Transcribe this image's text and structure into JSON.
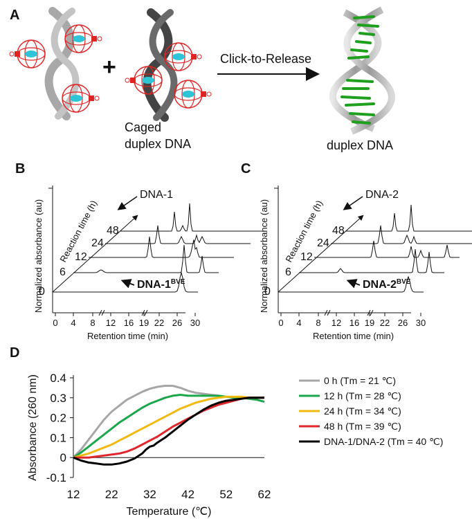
{
  "panel_a": {
    "letter": "A",
    "plus": "+",
    "arrow_label": "Click-to-Release",
    "caged_line1": "Caged",
    "caged_line2": "duplex DNA",
    "product_label": "duplex DNA"
  },
  "panel_b": {
    "letter": "B",
    "ylabel_line1": "Normalized  absorbance (au)",
    "depth_label": "Reaction time (h)",
    "xlabel": "Retention time (min)",
    "x_ticks": [
      "0",
      "4",
      "8",
      "12",
      "16",
      "19",
      "22",
      "26",
      "30"
    ],
    "trace_labels": [
      "0",
      "6",
      "12",
      "24",
      "48"
    ],
    "peak_top": "DNA-1",
    "peak_bottom": "DNA-1",
    "peak_bottom_sup": "BVE"
  },
  "panel_c": {
    "letter": "C",
    "ylabel_line1": "Normalized  absorbance (au)",
    "depth_label": "Reaction time (h)",
    "xlabel": "Retention time (min)",
    "x_ticks": [
      "0",
      "4",
      "8",
      "12",
      "16",
      "19",
      "22",
      "26",
      "30"
    ],
    "trace_labels": [
      "0",
      "6",
      "12",
      "24",
      "48"
    ],
    "peak_top": "DNA-2",
    "peak_bottom": "DNA-2",
    "peak_bottom_sup": "BVE"
  },
  "panel_d": {
    "letter": "D"
  },
  "chart_data": {
    "type": "line",
    "xlabel": "Temperature (℃)",
    "ylabel": "Absorbance (260 nm)",
    "xlim": [
      12,
      62
    ],
    "ylim": [
      -0.1,
      0.4
    ],
    "x_ticks": [
      "12",
      "22",
      "32",
      "42",
      "52",
      "62"
    ],
    "y_ticks": [
      "-0.1",
      "0",
      "0.1",
      "0.2",
      "0.3",
      "0.4"
    ],
    "legend_position": "right",
    "series": [
      {
        "name": "0 h (Tm = 21 ℃)",
        "color": "#a6a6a6",
        "x": [
          12,
          14,
          16,
          18,
          20,
          22,
          24,
          26,
          28,
          30,
          32,
          34,
          36,
          38,
          40,
          42,
          44,
          46,
          48,
          50,
          52,
          54,
          56,
          58,
          60,
          62
        ],
        "y": [
          0,
          0.04,
          0.09,
          0.14,
          0.19,
          0.23,
          0.26,
          0.29,
          0.31,
          0.33,
          0.345,
          0.355,
          0.36,
          0.36,
          0.35,
          0.335,
          0.325,
          0.32,
          0.315,
          0.31,
          0.305,
          0.3,
          0.3,
          0.3,
          0.3,
          0.3
        ]
      },
      {
        "name": "12 h (Tm = 28 ℃)",
        "color": "#1aa64a",
        "x": [
          12,
          14,
          16,
          18,
          20,
          22,
          24,
          26,
          28,
          30,
          32,
          34,
          36,
          38,
          40,
          42,
          44,
          46,
          48,
          50,
          52,
          54,
          56,
          58,
          60,
          62
        ],
        "y": [
          0,
          0.025,
          0.055,
          0.085,
          0.115,
          0.145,
          0.175,
          0.2,
          0.225,
          0.25,
          0.27,
          0.285,
          0.3,
          0.31,
          0.315,
          0.31,
          0.31,
          0.31,
          0.31,
          0.31,
          0.305,
          0.3,
          0.3,
          0.295,
          0.29,
          0.28
        ]
      },
      {
        "name": "24 h (Tm = 34 ℃)",
        "color": "#f2b90f",
        "x": [
          12,
          14,
          16,
          18,
          20,
          22,
          24,
          26,
          28,
          30,
          32,
          34,
          36,
          38,
          40,
          42,
          44,
          46,
          48,
          50,
          52,
          54,
          56,
          58,
          60,
          62
        ],
        "y": [
          0,
          0.01,
          0.02,
          0.035,
          0.05,
          0.065,
          0.085,
          0.105,
          0.125,
          0.145,
          0.165,
          0.185,
          0.205,
          0.225,
          0.245,
          0.26,
          0.275,
          0.285,
          0.295,
          0.3,
          0.305,
          0.305,
          0.305,
          0.3,
          0.3,
          0.3
        ]
      },
      {
        "name": "48 h (Tm = 39 ℃)",
        "color": "#e0262a",
        "x": [
          12,
          14,
          16,
          18,
          20,
          22,
          24,
          26,
          28,
          30,
          32,
          34,
          36,
          38,
          40,
          42,
          44,
          46,
          48,
          50,
          52,
          54,
          56,
          58,
          60,
          62
        ],
        "y": [
          0,
          0,
          0,
          0.005,
          0.01,
          0.015,
          0.02,
          0.03,
          0.045,
          0.065,
          0.085,
          0.105,
          0.13,
          0.155,
          0.175,
          0.195,
          0.215,
          0.235,
          0.25,
          0.265,
          0.275,
          0.285,
          0.295,
          0.3,
          0.3,
          0.3
        ]
      },
      {
        "name": "DNA-1/DNA-2 (Tm = 40 ℃)",
        "color": "#000000",
        "x": [
          12,
          14,
          16,
          18,
          20,
          22,
          24,
          26,
          28,
          30,
          31,
          32,
          33,
          34,
          36,
          38,
          40,
          42,
          44,
          46,
          48,
          50,
          52,
          54,
          56,
          58,
          60,
          62
        ],
        "y": [
          0,
          -0.015,
          -0.025,
          -0.03,
          -0.035,
          -0.035,
          -0.03,
          -0.02,
          -0.005,
          0.02,
          0.04,
          0.055,
          0.06,
          0.075,
          0.1,
          0.13,
          0.16,
          0.19,
          0.215,
          0.24,
          0.26,
          0.275,
          0.285,
          0.29,
          0.295,
          0.3,
          0.3,
          0.3
        ]
      }
    ]
  }
}
